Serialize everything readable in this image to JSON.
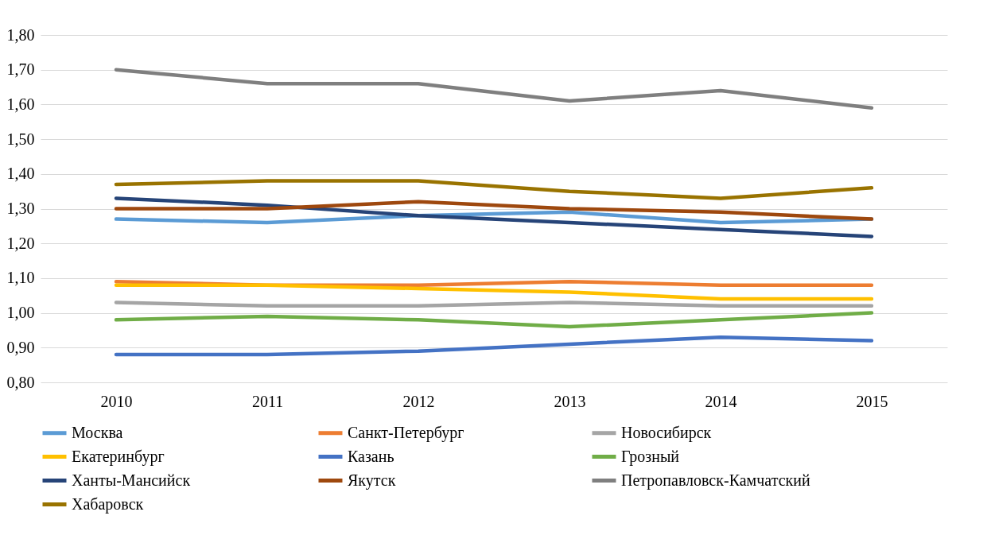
{
  "chart_data": {
    "type": "line",
    "categories": [
      "2010",
      "2011",
      "2012",
      "2013",
      "2014",
      "2015"
    ],
    "ylim": [
      0.8,
      1.8
    ],
    "yticks": [
      {
        "value": 0.8,
        "label": "0,80"
      },
      {
        "value": 0.9,
        "label": "0,90"
      },
      {
        "value": 1.0,
        "label": "1,00"
      },
      {
        "value": 1.1,
        "label": "1,10"
      },
      {
        "value": 1.2,
        "label": "1,20"
      },
      {
        "value": 1.3,
        "label": "1,30"
      },
      {
        "value": 1.4,
        "label": "1,40"
      },
      {
        "value": 1.5,
        "label": "1,50"
      },
      {
        "value": 1.6,
        "label": "1,60"
      },
      {
        "value": 1.7,
        "label": "1,70"
      },
      {
        "value": 1.8,
        "label": "1,80"
      }
    ],
    "grid": "y",
    "legend": "bottom",
    "marker": "none",
    "line_style": "solid",
    "series": [
      {
        "name": "Москва",
        "color": "#5b9bd5",
        "values": [
          1.27,
          1.26,
          1.28,
          1.29,
          1.26,
          1.27
        ]
      },
      {
        "name": "Санкт-Петербург",
        "color": "#ed7d31",
        "values": [
          1.09,
          1.08,
          1.08,
          1.09,
          1.08,
          1.08
        ]
      },
      {
        "name": "Новосибирск",
        "color": "#a5a5a5",
        "values": [
          1.03,
          1.02,
          1.02,
          1.03,
          1.02,
          1.02
        ]
      },
      {
        "name": "Екатеринбург",
        "color": "#ffc000",
        "values": [
          1.08,
          1.08,
          1.07,
          1.06,
          1.04,
          1.04
        ]
      },
      {
        "name": "Казань",
        "color": "#4472c4",
        "values": [
          0.88,
          0.88,
          0.89,
          0.91,
          0.93,
          0.92
        ]
      },
      {
        "name": "Грозный",
        "color": "#70ad47",
        "values": [
          0.98,
          0.99,
          0.98,
          0.96,
          0.98,
          1.0
        ]
      },
      {
        "name": "Ханты-Мансийск",
        "color": "#264478",
        "values": [
          1.33,
          1.31,
          1.28,
          1.26,
          1.24,
          1.22
        ]
      },
      {
        "name": "Якутск",
        "color": "#9e480e",
        "values": [
          1.3,
          1.3,
          1.32,
          1.3,
          1.29,
          1.27
        ]
      },
      {
        "name": "Петропавловск-Камчатский",
        "color": "#7f7f7f",
        "values": [
          1.7,
          1.66,
          1.66,
          1.61,
          1.64,
          1.59
        ]
      },
      {
        "name": "Хабаровск",
        "color": "#997300",
        "values": [
          1.37,
          1.38,
          1.38,
          1.35,
          1.33,
          1.36
        ]
      }
    ]
  }
}
